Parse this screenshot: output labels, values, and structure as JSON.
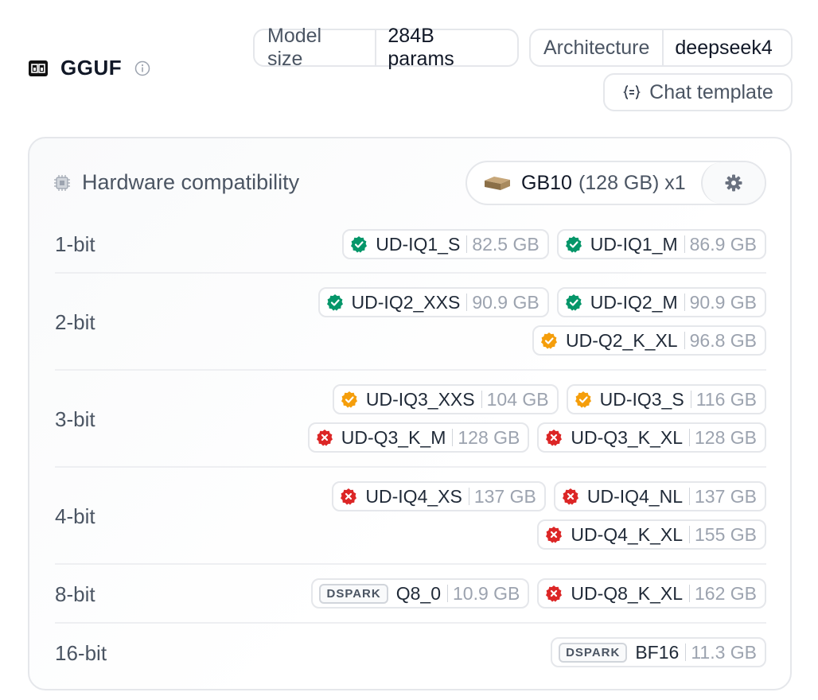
{
  "header": {
    "title": "GGUF",
    "model_size": {
      "label": "Model size",
      "value": "284B params"
    },
    "architecture": {
      "label": "Architecture",
      "value": "deepseek4"
    },
    "chat_template": "Chat template"
  },
  "hardware": {
    "title": "Hardware compatibility",
    "device": {
      "name": "GB10",
      "memory": "(128 GB) x1"
    }
  },
  "status_colors": {
    "ok": "#059669",
    "warn": "#f59e0b",
    "fail": "#dc2626"
  },
  "rows": [
    {
      "label": "1-bit",
      "chips": [
        {
          "status": "ok",
          "name": "UD-IQ1_S",
          "size": "82.5 GB"
        },
        {
          "status": "ok",
          "name": "UD-IQ1_M",
          "size": "86.9 GB"
        }
      ]
    },
    {
      "label": "2-bit",
      "chips": [
        {
          "status": "ok",
          "name": "UD-IQ2_XXS",
          "size": "90.9 GB"
        },
        {
          "status": "ok",
          "name": "UD-IQ2_M",
          "size": "90.9 GB"
        },
        {
          "status": "warn",
          "name": "UD-Q2_K_XL",
          "size": "96.8 GB"
        }
      ]
    },
    {
      "label": "3-bit",
      "chips": [
        {
          "status": "warn",
          "name": "UD-IQ3_XXS",
          "size": "104 GB"
        },
        {
          "status": "warn",
          "name": "UD-IQ3_S",
          "size": "116 GB"
        },
        {
          "status": "fail",
          "name": "UD-Q3_K_M",
          "size": "128 GB"
        },
        {
          "status": "fail",
          "name": "UD-Q3_K_XL",
          "size": "128 GB"
        }
      ]
    },
    {
      "label": "4-bit",
      "chips": [
        {
          "status": "fail",
          "name": "UD-IQ4_XS",
          "size": "137 GB"
        },
        {
          "status": "fail",
          "name": "UD-IQ4_NL",
          "size": "137 GB"
        },
        {
          "status": "fail",
          "name": "UD-Q4_K_XL",
          "size": "155 GB"
        }
      ]
    },
    {
      "label": "8-bit",
      "chips": [
        {
          "status": "tag",
          "tag": "DSPARK",
          "name": "Q8_0",
          "size": "10.9 GB"
        },
        {
          "status": "fail",
          "name": "UD-Q8_K_XL",
          "size": "162 GB"
        }
      ]
    },
    {
      "label": "16-bit",
      "chips": [
        {
          "status": "tag",
          "tag": "DSPARK",
          "name": "BF16",
          "size": "11.3 GB"
        }
      ]
    }
  ]
}
